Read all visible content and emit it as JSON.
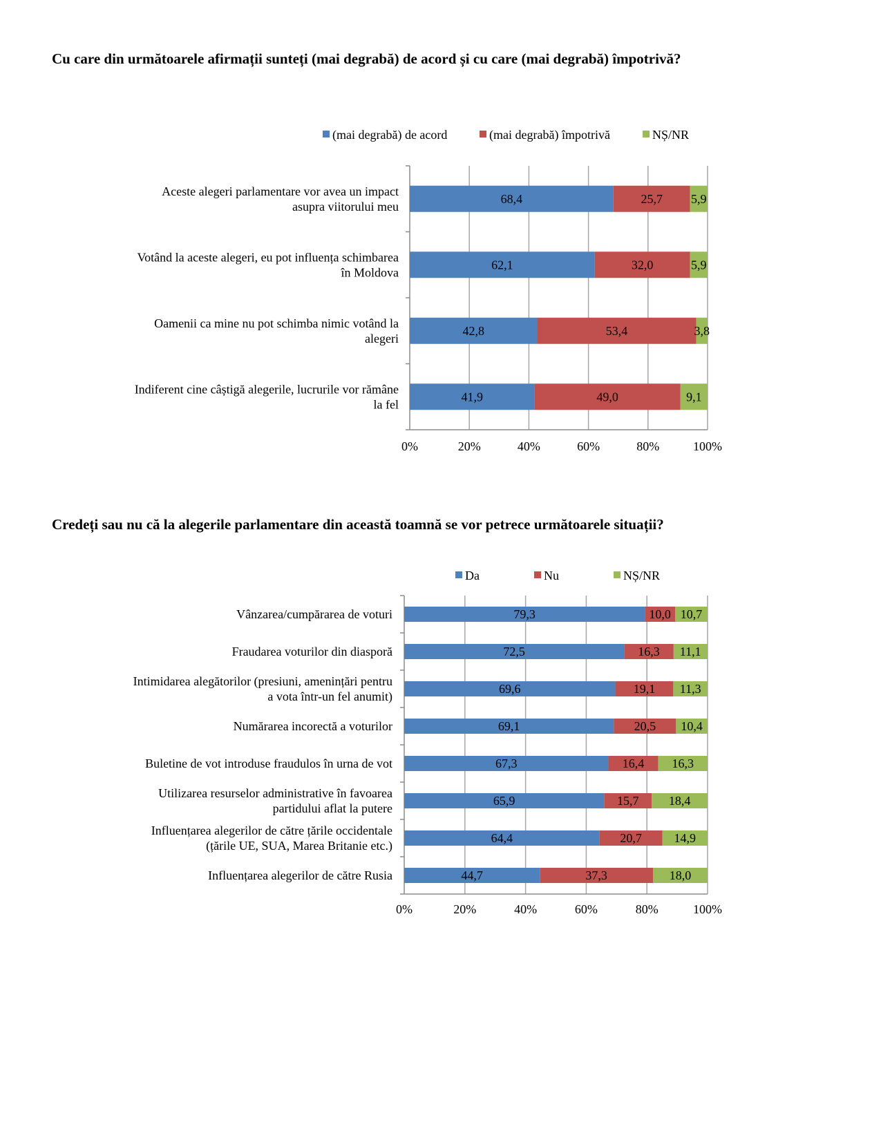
{
  "chart_data": [
    {
      "type": "bar",
      "orientation": "horizontal",
      "stacked": "100%",
      "title": "Cu care din următoarele afirmații sunteți (mai degrabă) de acord și cu care (mai degrabă) împotrivă?",
      "xlabel": "",
      "ylabel": "",
      "xlim": [
        0,
        100
      ],
      "x_ticks": [
        "0%",
        "20%",
        "40%",
        "60%",
        "80%",
        "100%"
      ],
      "grid": true,
      "legend_position": "top",
      "categories": [
        [
          "Aceste alegeri parlamentare vor avea un impact",
          "asupra viitorului meu"
        ],
        [
          "Votând la aceste alegeri, eu pot influența schimbarea",
          "în Moldova"
        ],
        [
          "Oamenii ca mine nu pot schimba nimic votând la",
          "alegeri"
        ],
        [
          "Indiferent cine câștigă alegerile, lucrurile vor rămâne",
          "la fel"
        ]
      ],
      "series": [
        {
          "name": "(mai degrabă) de acord",
          "color": "#4f81bd",
          "values": [
            68.4,
            62.1,
            42.8,
            41.9
          ],
          "labels": [
            "68,4",
            "62,1",
            "42,8",
            "41,9"
          ]
        },
        {
          "name": "(mai degrabă) împotrivă",
          "color": "#c0504d",
          "values": [
            25.7,
            32.0,
            53.4,
            49.0
          ],
          "labels": [
            "25,7",
            "32,0",
            "53,4",
            "49,0"
          ]
        },
        {
          "name": "NȘ/NR",
          "color": "#9bbb59",
          "values": [
            5.9,
            5.9,
            3.8,
            9.1
          ],
          "labels": [
            "5,9",
            "5,9",
            "3,8",
            "9,1"
          ]
        }
      ]
    },
    {
      "type": "bar",
      "orientation": "horizontal",
      "stacked": "100%",
      "title": "Credeți sau nu că la alegerile parlamentare din această toamnă se vor petrece următoarele situații?",
      "xlabel": "",
      "ylabel": "",
      "xlim": [
        0,
        100
      ],
      "x_ticks": [
        "0%",
        "20%",
        "40%",
        "60%",
        "80%",
        "100%"
      ],
      "grid": true,
      "legend_position": "top",
      "categories": [
        [
          "Vânzarea/cumpărarea de voturi"
        ],
        [
          "Fraudarea voturilor din diasporă"
        ],
        [
          "Intimidarea alegătorilor (presiuni, amenințări pentru",
          "a vota într-un fel anumit)"
        ],
        [
          "Numărarea incorectă a voturilor"
        ],
        [
          "Buletine de vot introduse fraudulos în urna de vot"
        ],
        [
          "Utilizarea resurselor administrative în favoarea",
          "partidului aflat la putere"
        ],
        [
          "Influențarea alegerilor de către țările occidentale",
          "(țările UE, SUA, Marea Britanie etc.)"
        ],
        [
          "Influențarea alegerilor de către Rusia"
        ]
      ],
      "series": [
        {
          "name": "Da",
          "color": "#4f81bd",
          "values": [
            79.3,
            72.5,
            69.6,
            69.1,
            67.3,
            65.9,
            64.4,
            44.7
          ],
          "labels": [
            "79,3",
            "72,5",
            "69,6",
            "69,1",
            "67,3",
            "65,9",
            "64,4",
            "44,7"
          ]
        },
        {
          "name": "Nu",
          "color": "#c0504d",
          "values": [
            10.0,
            16.3,
            19.1,
            20.5,
            16.4,
            15.7,
            20.7,
            37.3
          ],
          "labels": [
            "10,0",
            "16,3",
            "19,1",
            "20,5",
            "16,4",
            "15,7",
            "20,7",
            "37,3"
          ]
        },
        {
          "name": "NȘ/NR",
          "color": "#9bbb59",
          "values": [
            10.7,
            11.1,
            11.3,
            10.4,
            16.3,
            18.4,
            14.9,
            18.0
          ],
          "labels": [
            "10,7",
            "11,1",
            "11,3",
            "10,4",
            "16,3",
            "18,4",
            "14,9",
            "18,0"
          ]
        }
      ]
    }
  ]
}
